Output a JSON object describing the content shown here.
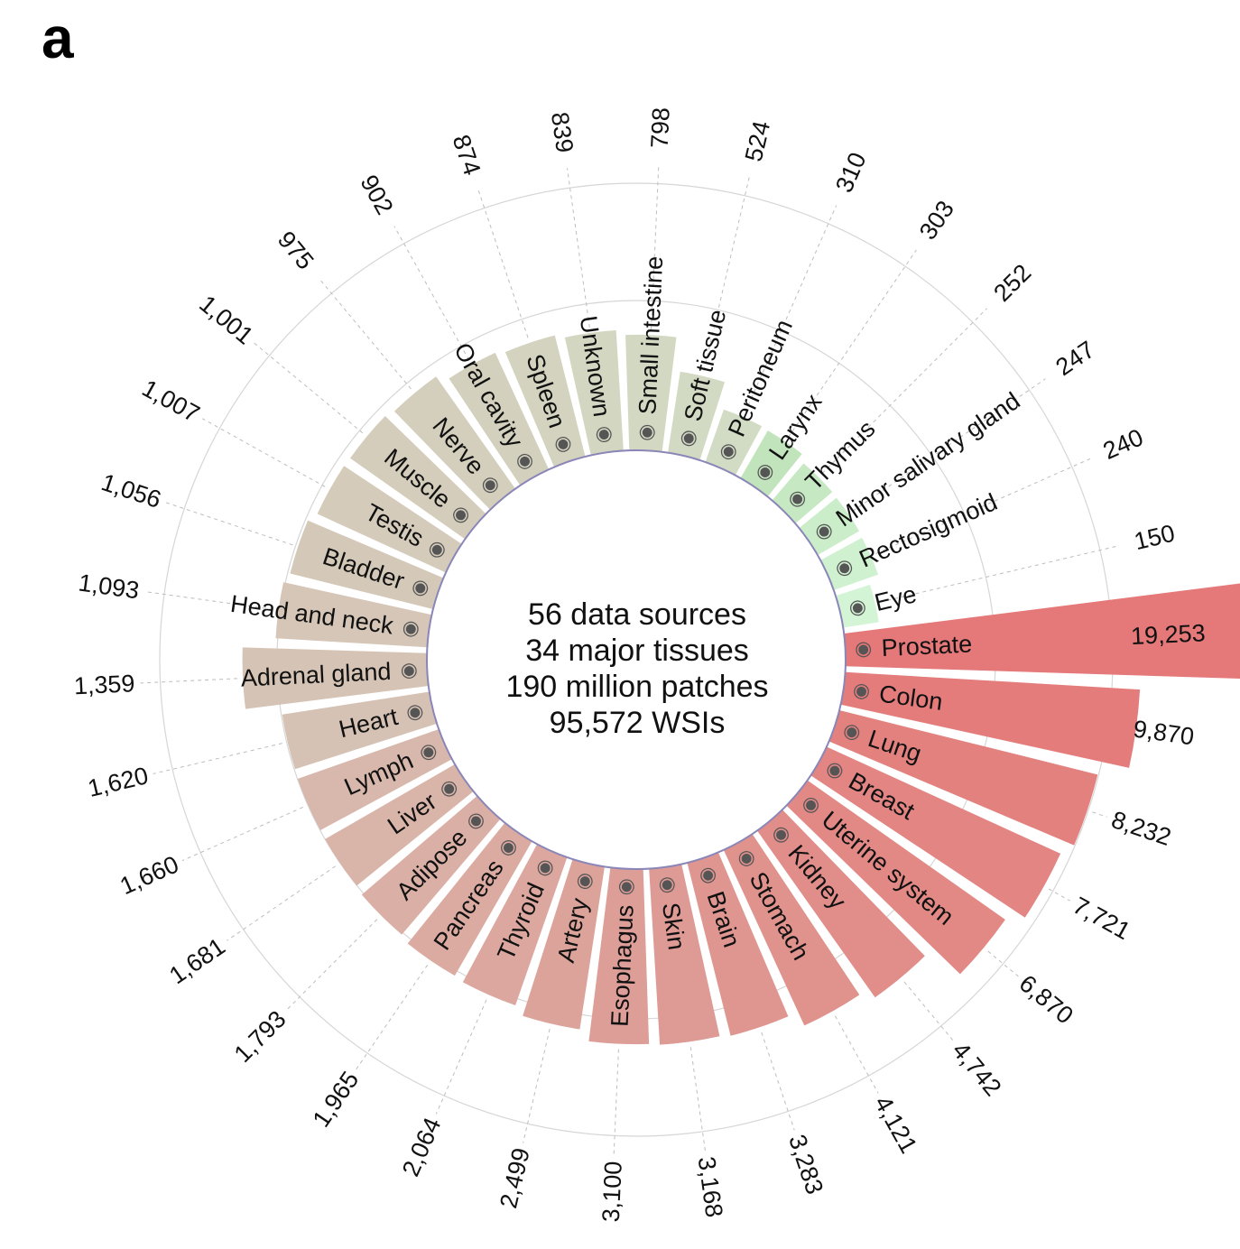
{
  "panel_label": "a",
  "center_lines": [
    "56 data sources",
    "34 major tissues",
    "190 million patches",
    "95,572 WSIs"
  ],
  "chart_data": {
    "type": "bar",
    "polar": true,
    "grid": true,
    "title": "",
    "categories": [
      "Prostate",
      "Colon",
      "Lung",
      "Breast",
      "Uterine system",
      "Kidney",
      "Stomach",
      "Brain",
      "Skin",
      "Esophagus",
      "Artery",
      "Thyroid",
      "Pancreas",
      "Adipose",
      "Liver",
      "Lymph",
      "Heart",
      "Adrenal gland",
      "Head and neck",
      "Bladder",
      "Testis",
      "Muscle",
      "Nerve",
      "Oral cavity",
      "Spleen",
      "Unknown",
      "Small intestine",
      "Soft tissue",
      "Peritoneum",
      "Larynx",
      "Thymus",
      "Minor salivary gland",
      "Rectosigmoid",
      "Eye"
    ],
    "values": [
      19253,
      9870,
      8232,
      7721,
      6870,
      4742,
      4121,
      3283,
      3168,
      3100,
      2499,
      2064,
      1965,
      1793,
      1681,
      1660,
      1620,
      1359,
      1093,
      1056,
      1007,
      1001,
      975,
      902,
      874,
      839,
      798,
      524,
      310,
      303,
      252,
      247,
      240,
      150
    ],
    "value_labels": [
      "19,253",
      "9,870",
      "8,232",
      "7,721",
      "6,870",
      "4,742",
      "4,121",
      "3,283",
      "3,168",
      "3,100",
      "2,499",
      "2,064",
      "1,965",
      "1,793",
      "1,681",
      "1,660",
      "1,620",
      "1,359",
      "1,093",
      "1,056",
      "1,007",
      "1,001",
      "975",
      "902",
      "874",
      "839",
      "798",
      "524",
      "310",
      "303",
      "252",
      "247",
      "240",
      "150"
    ],
    "icons": [
      "prostate-icon",
      "colon-icon",
      "lung-icon",
      "breast-icon",
      "uterus-icon",
      "kidney-icon",
      "stomach-icon",
      "brain-icon",
      "skin-icon",
      "esophagus-icon",
      "artery-icon",
      "thyroid-icon",
      "pancreas-icon",
      "adipose-icon",
      "liver-icon",
      "lymph-icon",
      "heart-icon",
      "adrenal-gland-icon",
      "head-neck-icon",
      "bladder-icon",
      "testis-icon",
      "muscle-icon",
      "nerve-icon",
      "oral-cavity-icon",
      "spleen-icon",
      "unknown-icon",
      "small-intestine-icon",
      "soft-tissue-icon",
      "peritoneum-icon",
      "larynx-icon",
      "thymus-icon",
      "salivary-gland-icon",
      "rectosigmoid-icon",
      "eye-icon"
    ],
    "colors": {
      "high_start": "#e57878",
      "high_end": "#d8b8ad",
      "mid_start": "#d5c2b4",
      "mid_end": "#d2dcc5",
      "low_start": "#c2e4bc",
      "low_end": "#d3f5d6",
      "inner_ring": "#8a86b8",
      "grid": "#d6d6d6",
      "leader": "#bdbdbd"
    }
  }
}
